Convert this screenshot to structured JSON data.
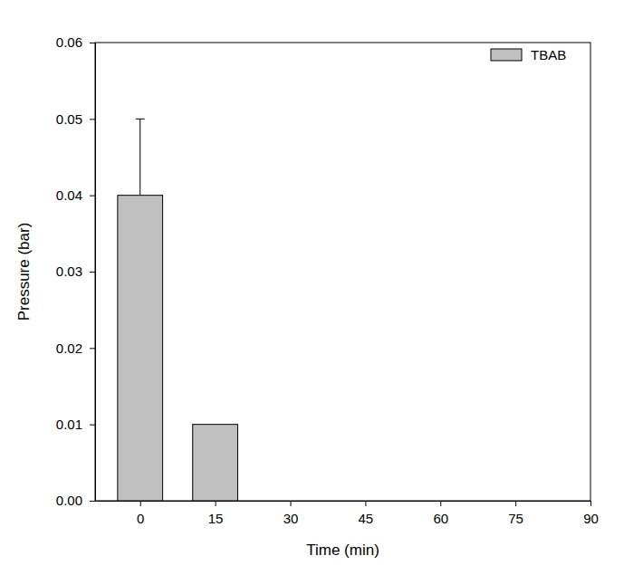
{
  "chart_data": {
    "type": "bar",
    "x": [
      0,
      15,
      30,
      45,
      60,
      75
    ],
    "series": [
      {
        "name": "TBAB",
        "color": "#c0c0c0",
        "values": [
          0.04,
          0.01,
          0,
          0,
          0,
          0
        ],
        "errors": [
          0.01,
          0,
          0,
          0,
          0,
          0
        ]
      }
    ],
    "xlim": [
      -9,
      90
    ],
    "xticks": [
      0,
      15,
      30,
      45,
      60,
      75,
      90
    ],
    "ylim": [
      0,
      0.06
    ],
    "yticks": [
      {
        "value": 0,
        "label": "0.00"
      },
      {
        "value": 0.01,
        "label": "0.01"
      },
      {
        "value": 0.02,
        "label": "0.02"
      },
      {
        "value": 0.03,
        "label": "0.03"
      },
      {
        "value": 0.04,
        "label": "0.04"
      },
      {
        "value": 0.05,
        "label": "0.05"
      },
      {
        "value": 0.06,
        "label": "0.06"
      }
    ],
    "x_label": "Time (min)",
    "y_label": "Pressure (bar)",
    "legend": "upper-right"
  }
}
